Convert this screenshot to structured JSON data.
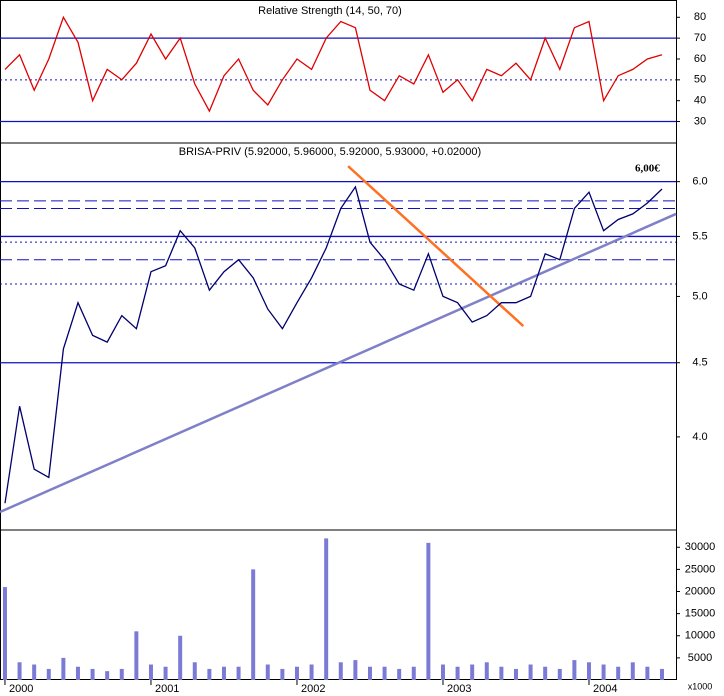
{
  "chart_data": [
    {
      "type": "line",
      "title": "Relative Strength (14, 50, 70)",
      "color": "#e00000",
      "x": [
        2000.0,
        2000.1,
        2000.2,
        2000.3,
        2000.4,
        2000.5,
        2000.6,
        2000.7,
        2000.8,
        2000.9,
        2001.0,
        2001.1,
        2001.2,
        2001.3,
        2001.4,
        2001.5,
        2001.6,
        2001.7,
        2001.8,
        2001.9,
        2002.0,
        2002.1,
        2002.2,
        2002.3,
        2002.4,
        2002.5,
        2002.6,
        2002.7,
        2002.8,
        2002.9,
        2003.0,
        2003.1,
        2003.2,
        2003.3,
        2003.4,
        2003.5,
        2003.6,
        2003.7,
        2003.8,
        2003.9,
        2004.0,
        2004.1,
        2004.2,
        2004.3,
        2004.4,
        2004.5
      ],
      "values": [
        55,
        62,
        45,
        60,
        80,
        68,
        40,
        55,
        50,
        58,
        72,
        60,
        70,
        48,
        35,
        52,
        60,
        45,
        38,
        50,
        60,
        55,
        70,
        78,
        75,
        45,
        40,
        52,
        48,
        62,
        44,
        50,
        40,
        55,
        52,
        58,
        50,
        70,
        55,
        75,
        78,
        40,
        52,
        55,
        60,
        62
      ],
      "xlim": [
        1999.966,
        2004.596
      ],
      "ylim": [
        19.7,
        88.3
      ],
      "yticks": [
        30,
        40,
        50,
        60,
        70,
        80
      ],
      "hlines": [
        {
          "value": 70,
          "style": "solid"
        },
        {
          "value": 50,
          "style": "dotted"
        },
        {
          "value": 30,
          "style": "solid"
        }
      ]
    },
    {
      "type": "line",
      "title": "BRISA-PRIV (5.92000, 5.96000, 5.92000, 5.93000, +0.02000)",
      "color": "#00006e",
      "log_scale": true,
      "x": [
        2000.0,
        2000.1,
        2000.2,
        2000.3,
        2000.4,
        2000.5,
        2000.6,
        2000.7,
        2000.8,
        2000.9,
        2001.0,
        2001.1,
        2001.2,
        2001.3,
        2001.4,
        2001.5,
        2001.6,
        2001.7,
        2001.8,
        2001.9,
        2002.0,
        2002.1,
        2002.2,
        2002.3,
        2002.4,
        2002.5,
        2002.6,
        2002.7,
        2002.8,
        2002.9,
        2003.0,
        2003.1,
        2003.2,
        2003.3,
        2003.4,
        2003.5,
        2003.6,
        2003.7,
        2003.8,
        2003.9,
        2004.0,
        2004.1,
        2004.2,
        2004.3,
        2004.4,
        2004.5
      ],
      "values": [
        3.6,
        4.2,
        3.8,
        3.75,
        4.6,
        4.95,
        4.7,
        4.65,
        4.85,
        4.75,
        5.2,
        5.25,
        5.55,
        5.4,
        5.05,
        5.2,
        5.3,
        5.15,
        4.9,
        4.75,
        4.95,
        5.15,
        5.4,
        5.75,
        5.95,
        5.45,
        5.3,
        5.1,
        5.05,
        5.35,
        5.0,
        4.95,
        4.8,
        4.85,
        4.95,
        4.95,
        5.0,
        5.35,
        5.3,
        5.75,
        5.9,
        5.55,
        5.65,
        5.7,
        5.8,
        5.93
      ],
      "xlim": [
        1999.966,
        2004.596
      ],
      "ylim": [
        3.45,
        6.38
      ],
      "yticks": [
        {
          "value": 4.0,
          "label": "4.0"
        },
        {
          "value": 4.5,
          "label": "4.5"
        },
        {
          "value": 5.0,
          "label": "5.0"
        },
        {
          "value": 5.5,
          "label": "5.5"
        },
        {
          "value": 6.0,
          "label": "6.0"
        }
      ],
      "hlines": [
        {
          "value": 6.0,
          "style": "solid"
        },
        {
          "value": 5.82,
          "style": "dashed"
        },
        {
          "value": 5.75,
          "style": "dashed"
        },
        {
          "value": 5.5,
          "style": "solid"
        },
        {
          "value": 5.45,
          "style": "dotted"
        },
        {
          "value": 5.3,
          "style": "dashed"
        },
        {
          "value": 5.1,
          "style": "dotted"
        },
        {
          "value": 4.5,
          "style": "solid"
        }
      ],
      "trendlines": [
        {
          "color": "#8080c8",
          "x": [
            1999.966,
            2004.596
          ],
          "y": [
            3.55,
            5.7
          ]
        },
        {
          "color": "#ff7020",
          "x": [
            2002.35,
            2003.55
          ],
          "y": [
            6.15,
            4.77
          ]
        }
      ],
      "annotations": [
        {
          "text": "6,00€",
          "x": 2004.4,
          "y": 6.12
        }
      ]
    },
    {
      "type": "bar",
      "color": "#7b7bd6",
      "ylabel": "x1000",
      "x": [
        2000.0,
        2000.1,
        2000.2,
        2000.3,
        2000.4,
        2000.5,
        2000.6,
        2000.7,
        2000.8,
        2000.9,
        2001.0,
        2001.1,
        2001.2,
        2001.3,
        2001.4,
        2001.5,
        2001.6,
        2001.7,
        2001.8,
        2001.9,
        2002.0,
        2002.1,
        2002.2,
        2002.3,
        2002.4,
        2002.5,
        2002.6,
        2002.7,
        2002.8,
        2002.9,
        2003.0,
        2003.1,
        2003.2,
        2003.3,
        2003.4,
        2003.5,
        2003.6,
        2003.7,
        2003.8,
        2003.9,
        2004.0,
        2004.1,
        2004.2,
        2004.3,
        2004.4,
        2004.5
      ],
      "values": [
        21000,
        4000,
        3500,
        2500,
        5000,
        3000,
        2500,
        2000,
        2500,
        11000,
        3500,
        3000,
        10000,
        4000,
        2500,
        3000,
        3000,
        25000,
        3500,
        2500,
        3000,
        3500,
        32000,
        4000,
        4500,
        3000,
        3000,
        2500,
        3000,
        31000,
        3500,
        3000,
        3500,
        4000,
        3000,
        2500,
        3500,
        3000,
        2500,
        4500,
        4000,
        3500,
        3000,
        4000,
        3000,
        2500
      ],
      "xlim": [
        1999.966,
        2004.596
      ],
      "ylim": [
        0,
        33900
      ],
      "yticks": [
        5000,
        10000,
        15000,
        20000,
        25000,
        30000
      ],
      "xticks": [
        2000,
        2001,
        2002,
        2003,
        2004
      ]
    }
  ]
}
